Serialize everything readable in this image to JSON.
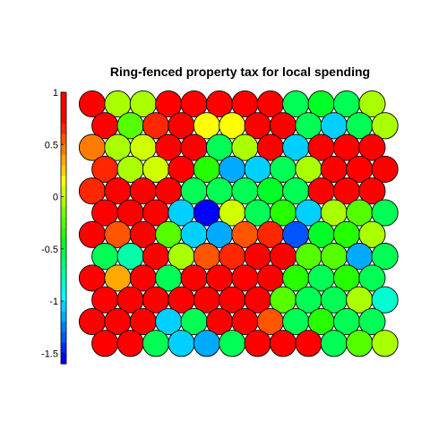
{
  "chart_data": {
    "type": "heatmap",
    "title": "Ring-fenced property tax for local spending",
    "subtype": "hexagonal self-organizing map (circles)",
    "grid": {
      "rows": 12,
      "cols": 12,
      "offset_rows": "odd rows shifted right"
    },
    "colorbar": {
      "range": [
        -1.6,
        1.0
      ],
      "ticks": [
        1,
        0.5,
        0,
        -0.5,
        -1,
        -1.5
      ],
      "tick_labels": [
        "1",
        "0.5",
        "0",
        "-0.5",
        "-1",
        "-1.5"
      ],
      "colors_top_to_bottom": [
        "#ff0000",
        "#ff0000",
        "#ff0000",
        "#ff2600",
        "#ff5500",
        "#ff7b00",
        "#ffaa00",
        "#ffd000",
        "#ffff00",
        "#d0ff00",
        "#aaff00",
        "#7bff00",
        "#55ff00",
        "#26ff00",
        "#00ff26",
        "#00ff55",
        "#00ff7b",
        "#00ffaa",
        "#00ffd0",
        "#00ffff",
        "#00d0ff",
        "#00aaff",
        "#007bff",
        "#0055ff",
        "#0026ff",
        "#0000ff"
      ]
    },
    "values": [
      [
        0.95,
        -0.05,
        -0.05,
        0.95,
        0.95,
        0.75,
        0.95,
        0.95,
        -0.55,
        -0.45,
        -0.55,
        -0.05
      ],
      [
        0.95,
        -0.25,
        0.65,
        0.75,
        0.15,
        0.15,
        0.95,
        0.95,
        -0.55,
        -1.05,
        -0.55,
        -0.05
      ],
      [
        0.45,
        -0.05,
        0.05,
        0.95,
        0.95,
        -0.55,
        -0.05,
        0.95,
        -1.05,
        0.75,
        0.95,
        0.95
      ],
      [
        0.65,
        -0.05,
        0.05,
        0.95,
        -0.35,
        -1.15,
        -1.05,
        -0.55,
        -0.05,
        0.95,
        0.95,
        0.95
      ],
      [
        0.65,
        0.95,
        0.95,
        0.95,
        -0.55,
        -0.55,
        -0.55,
        -0.45,
        -0.55,
        0.95,
        0.95,
        0.95
      ],
      [
        0.95,
        0.95,
        0.95,
        -1.05,
        -1.55,
        0.05,
        -0.55,
        -0.35,
        -1.05,
        -0.05,
        -0.25,
        -0.55
      ],
      [
        0.95,
        0.55,
        0.85,
        -0.25,
        -1.05,
        -1.15,
        0.55,
        0.65,
        -1.35,
        -0.45,
        -0.35,
        -0.05
      ],
      [
        -0.55,
        -0.75,
        0.95,
        -0.05,
        0.55,
        0.65,
        0.95,
        0.95,
        -0.25,
        -0.25,
        -1.15,
        -0.55
      ],
      [
        0.95,
        0.35,
        0.95,
        -0.55,
        0.95,
        0.95,
        0.95,
        0.95,
        -0.35,
        -0.55,
        -0.35,
        -0.55
      ],
      [
        0.75,
        0.95,
        0.95,
        0.95,
        0.95,
        0.95,
        0.95,
        -0.25,
        -0.55,
        -0.55,
        -0.05,
        -0.85
      ],
      [
        0.75,
        0.95,
        0.95,
        -1.05,
        -0.55,
        0.95,
        0.95,
        0.55,
        -0.55,
        -0.35,
        -0.55,
        -0.55
      ],
      [
        0.95,
        0.75,
        -0.55,
        -1.05,
        -1.15,
        -0.55,
        0.75,
        0.95,
        0.75,
        -0.55,
        -0.25,
        -0.05
      ]
    ]
  }
}
